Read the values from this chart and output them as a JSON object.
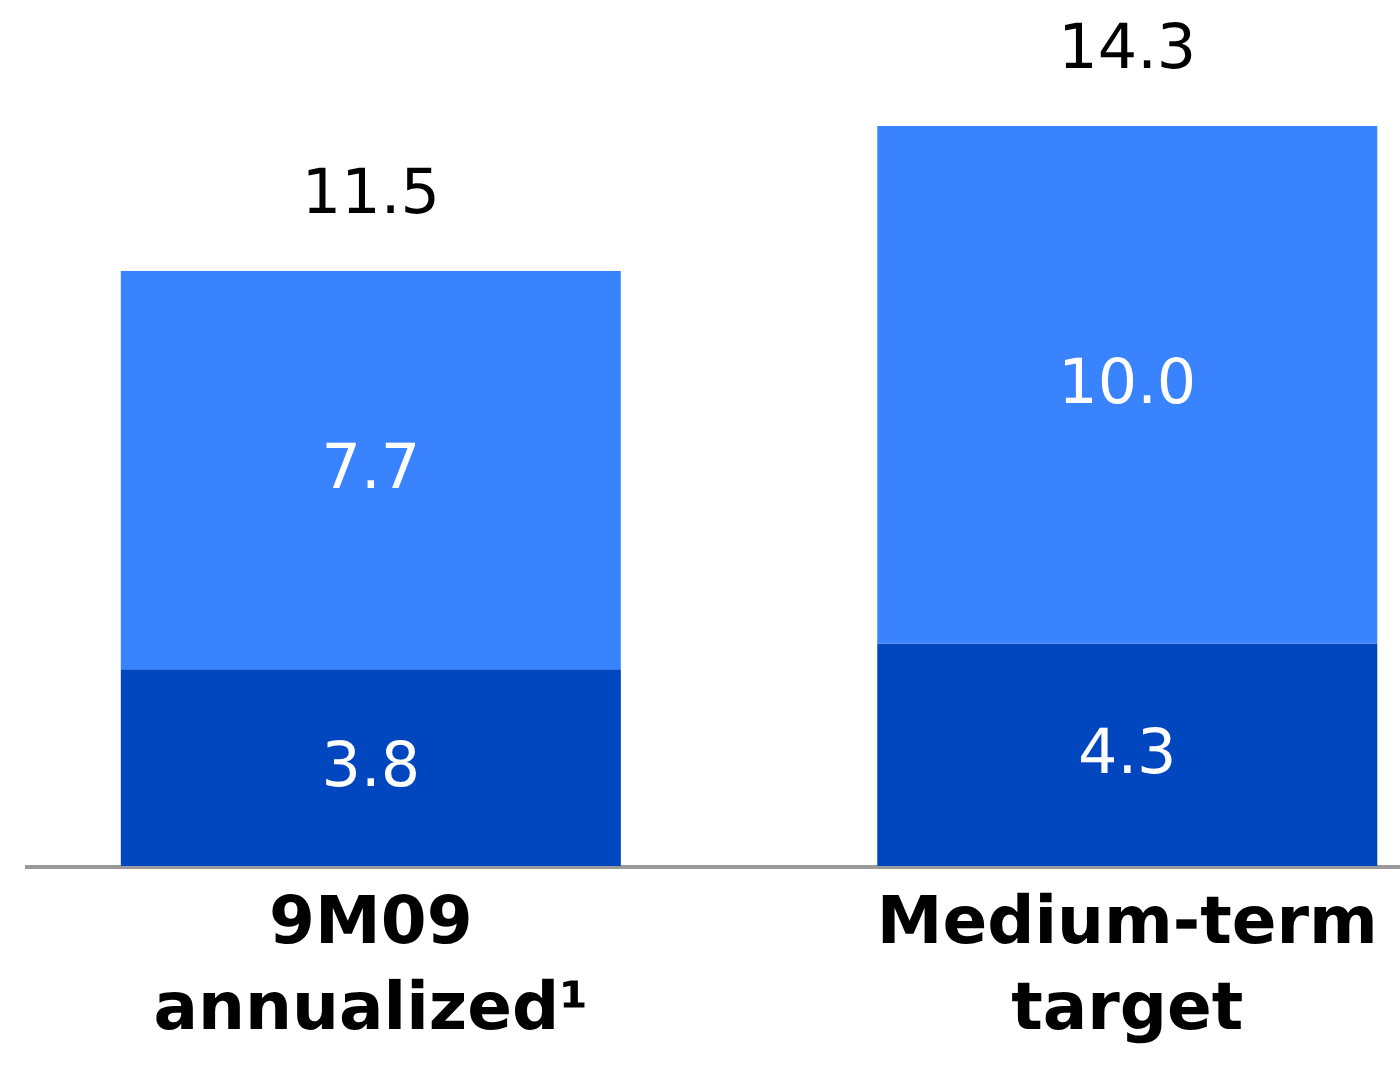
{
  "chart_data": {
    "type": "bar",
    "categories": [
      "9M09 annualized¹",
      "Medium-term target"
    ],
    "stacked": true,
    "totals": [
      "11.5",
      "14.3"
    ],
    "series": [
      {
        "color": "#0047bf",
        "values": [
          3.8,
          4.3
        ],
        "value_labels": [
          "3.8",
          "4.3"
        ]
      },
      {
        "color": "#3a83ff",
        "values": [
          7.7,
          10.0
        ],
        "value_labels": [
          "7.7",
          "10.0"
        ]
      }
    ]
  }
}
